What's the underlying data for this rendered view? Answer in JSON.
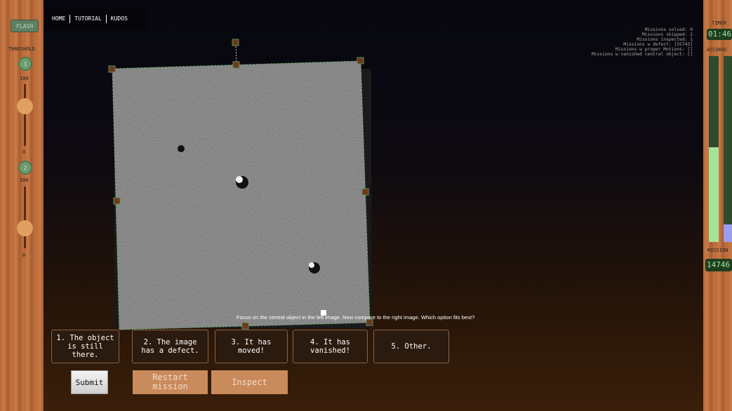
{
  "left_panel": {
    "flash": "FLASH",
    "threshold": "THRESHOLD",
    "slider1": {
      "id": "1",
      "max": "100",
      "min": "0"
    },
    "slider2": {
      "id": "2",
      "max": "100",
      "min": "0"
    }
  },
  "nav": {
    "items": [
      "HOME",
      "TUTORIAL",
      "KUDOS"
    ]
  },
  "stats": [
    "Missions solved: 0",
    "Missions skipped: 2",
    "Missions inspected: 1",
    "Missions w defect: [55743]",
    "Missions w proper Motions: []",
    "Missions w vanished central object: []"
  ],
  "right_panel": {
    "timer_label": "TIMER",
    "timer": "01:46",
    "accuracy_label": "ACCURAC",
    "mission_label": "MISSION",
    "mission": "14746"
  },
  "instruction": "Focus on the central object in the left image. Now compare to the right image. Which option fits best?",
  "options": [
    "1. The object is still there.",
    "2. The image has a defect.",
    "3. It has moved!",
    "4. It has vanished!",
    "5. Other."
  ],
  "buttons": {
    "submit": "Submit",
    "restart": "Restart mission",
    "inspect": "Inspect"
  }
}
